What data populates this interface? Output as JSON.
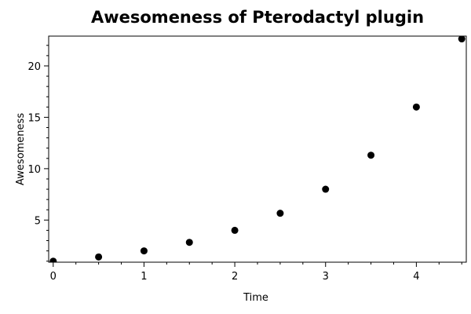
{
  "chart_data": {
    "type": "scatter",
    "title": "Awesomeness of Pterodactyl plugin",
    "xlabel": "Time",
    "ylabel": "Awesomeness",
    "x": [
      0,
      0.5,
      1,
      1.5,
      2,
      2.5,
      3,
      3.5,
      4,
      4.5
    ],
    "y": [
      1,
      1.41,
      2,
      2.83,
      4,
      5.66,
      8,
      11.31,
      16,
      22.63
    ],
    "xlim": [
      -0.05,
      4.55
    ],
    "ylim": [
      0.9,
      22.9
    ],
    "xticks": [
      "0",
      "1",
      "2",
      "3",
      "4"
    ],
    "yticks": [
      "5",
      "10",
      "15",
      "20"
    ],
    "grid": false,
    "marker_color": "#000000"
  }
}
